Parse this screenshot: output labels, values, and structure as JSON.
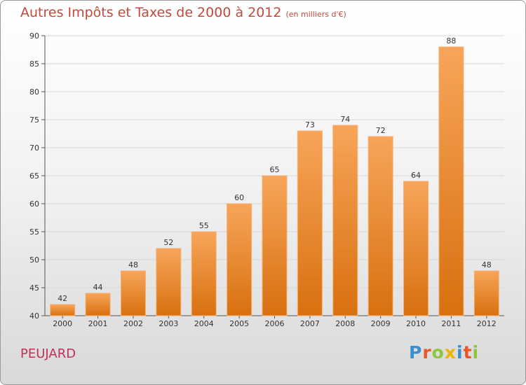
{
  "chart_data": {
    "type": "bar",
    "title": "Autres Impôts et Taxes de 2000 à 2012",
    "subtitle": "(en milliers d'€)",
    "categories": [
      "2000",
      "2001",
      "2002",
      "2003",
      "2004",
      "2005",
      "2006",
      "2007",
      "2008",
      "2009",
      "2010",
      "2011",
      "2012"
    ],
    "values": [
      42,
      44,
      48,
      52,
      55,
      60,
      65,
      73,
      74,
      72,
      64,
      88,
      48
    ],
    "ylim": [
      40,
      90
    ],
    "yticks": [
      40,
      45,
      50,
      55,
      60,
      65,
      70,
      75,
      80,
      85,
      90
    ],
    "grid": true,
    "bar_color": "#f08a2c"
  },
  "place_name": "PEUJARD",
  "logo": {
    "letters": [
      {
        "ch": "P",
        "color": "#3a8fd1"
      },
      {
        "ch": "r",
        "color": "#e8562a"
      },
      {
        "ch": "o",
        "color": "#8cc63f"
      },
      {
        "ch": "x",
        "color": "#f0b400"
      },
      {
        "ch": "i",
        "color": "#3a8fd1"
      },
      {
        "ch": "t",
        "color": "#e8562a"
      },
      {
        "ch": "i",
        "color": "#8cc63f"
      }
    ]
  }
}
